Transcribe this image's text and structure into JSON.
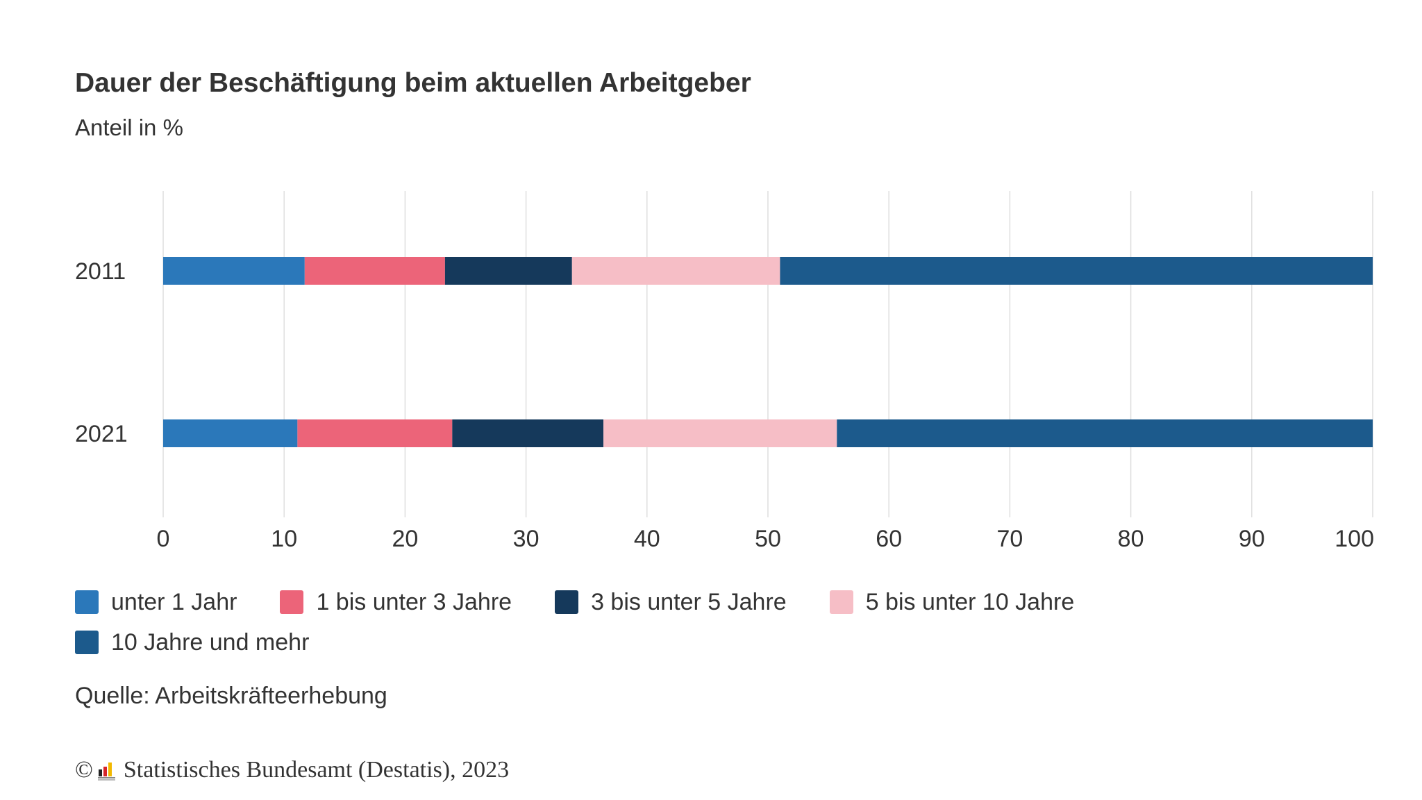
{
  "header": {
    "title": "Dauer der Beschäftigung beim aktuellen Arbeitgeber",
    "subtitle": "Anteil in %"
  },
  "chart_data": {
    "type": "bar",
    "orientation": "horizontal",
    "stacked": true,
    "title": "Dauer der Beschäftigung beim aktuellen Arbeitgeber",
    "subtitle": "Anteil in %",
    "xlabel": "",
    "ylabel": "",
    "categories": [
      "2011",
      "2021"
    ],
    "xlim": [
      0,
      100
    ],
    "x_ticks": [
      "0",
      "10",
      "20",
      "30",
      "40",
      "50",
      "60",
      "70",
      "80",
      "90",
      "100"
    ],
    "grid": true,
    "legend_position": "bottom",
    "series": [
      {
        "name": "unter 1 Jahr",
        "color": "#2b78ba",
        "values": [
          11.7,
          11.1
        ]
      },
      {
        "name": "1 bis unter 3 Jahre",
        "color": "#ec6479",
        "values": [
          11.6,
          12.8
        ]
      },
      {
        "name": "3 bis unter 5 Jahre",
        "color": "#15395b",
        "values": [
          10.5,
          12.5
        ]
      },
      {
        "name": "5 bis unter 10 Jahre",
        "color": "#f6bec6",
        "values": [
          17.2,
          19.3
        ]
      },
      {
        "name": "10 Jahre und mehr",
        "color": "#1c5a8c",
        "values": [
          49.0,
          44.3
        ]
      }
    ]
  },
  "footer": {
    "source": "Quelle: Arbeitskräfteerhebung",
    "copyright_symbol": "©",
    "copyright_text": "Statistisches Bundesamt (Destatis), 2023"
  }
}
